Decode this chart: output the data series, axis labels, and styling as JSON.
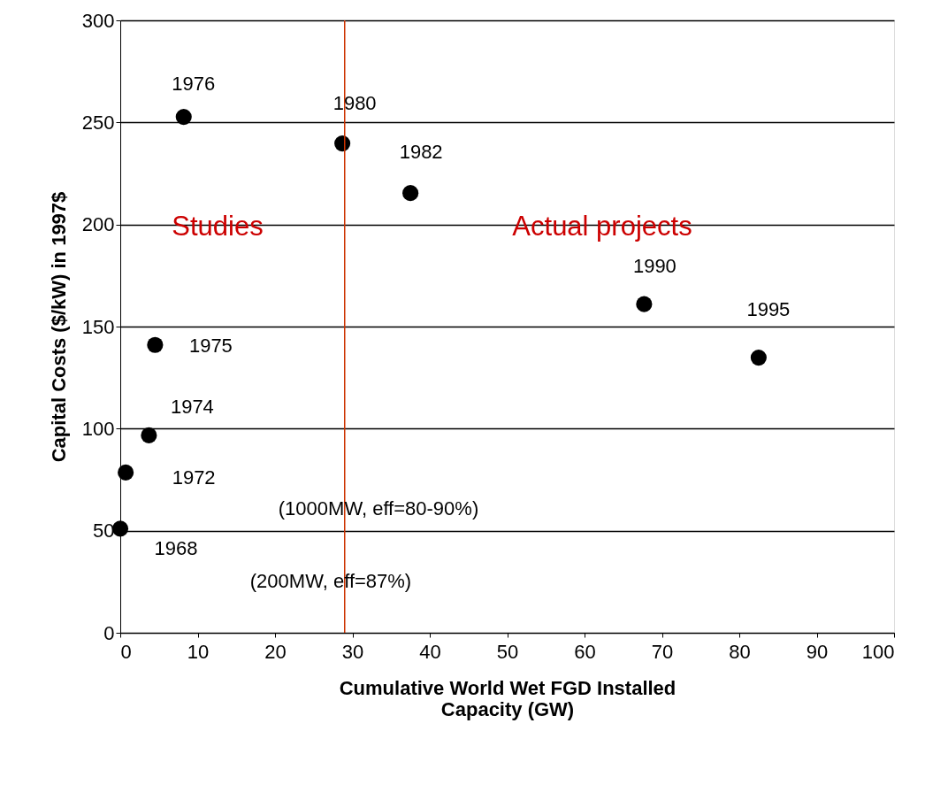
{
  "chart_data": {
    "type": "scatter",
    "xlabel": "Cumulative World Wet FGD Installed Capacity (GW)",
    "ylabel": "Capital Costs ($/kW) in 1997$",
    "x": [
      0,
      0.7,
      3.7,
      4.5,
      8.2,
      28.7,
      37.5,
      67.7,
      82.5
    ],
    "series": [
      {
        "color": "#000000",
        "values": [
          51,
          78.5,
          96.7,
          141,
          252.7,
          239.7,
          215.4,
          161,
          134.8
        ]
      }
    ],
    "xlim": [
      0,
      100
    ],
    "xticks": [
      0,
      10,
      20,
      30,
      40,
      50,
      60,
      70,
      80,
      90,
      100
    ],
    "ylim": [
      0,
      300
    ],
    "yticks": [
      0,
      50,
      100,
      150,
      200,
      250,
      300
    ],
    "grid": "y",
    "marker": "circle",
    "ref_lines": [
      {
        "axis": "x",
        "value": 29,
        "color": "#cc3300"
      }
    ],
    "annotations": [
      {
        "text": "1968",
        "x": 0,
        "y": 51
      },
      {
        "text": "1972",
        "x": 0.7,
        "y": 78.5
      },
      {
        "text": "1974",
        "x": 3.7,
        "y": 96.7
      },
      {
        "text": "1975",
        "x": 4.5,
        "y": 141
      },
      {
        "text": "1976",
        "x": 8.2,
        "y": 252.7
      },
      {
        "text": "1980",
        "x": 28.7,
        "y": 239.7
      },
      {
        "text": "1982",
        "x": 37.5,
        "y": 215.4
      },
      {
        "text": "1990",
        "x": 67.7,
        "y": 161
      },
      {
        "text": "1995",
        "x": 82.5,
        "y": 134.8
      },
      "(1000MW, eff=80-90%)",
      "(200MW, eff=87%)",
      "Studies",
      "Actual projects"
    ]
  }
}
